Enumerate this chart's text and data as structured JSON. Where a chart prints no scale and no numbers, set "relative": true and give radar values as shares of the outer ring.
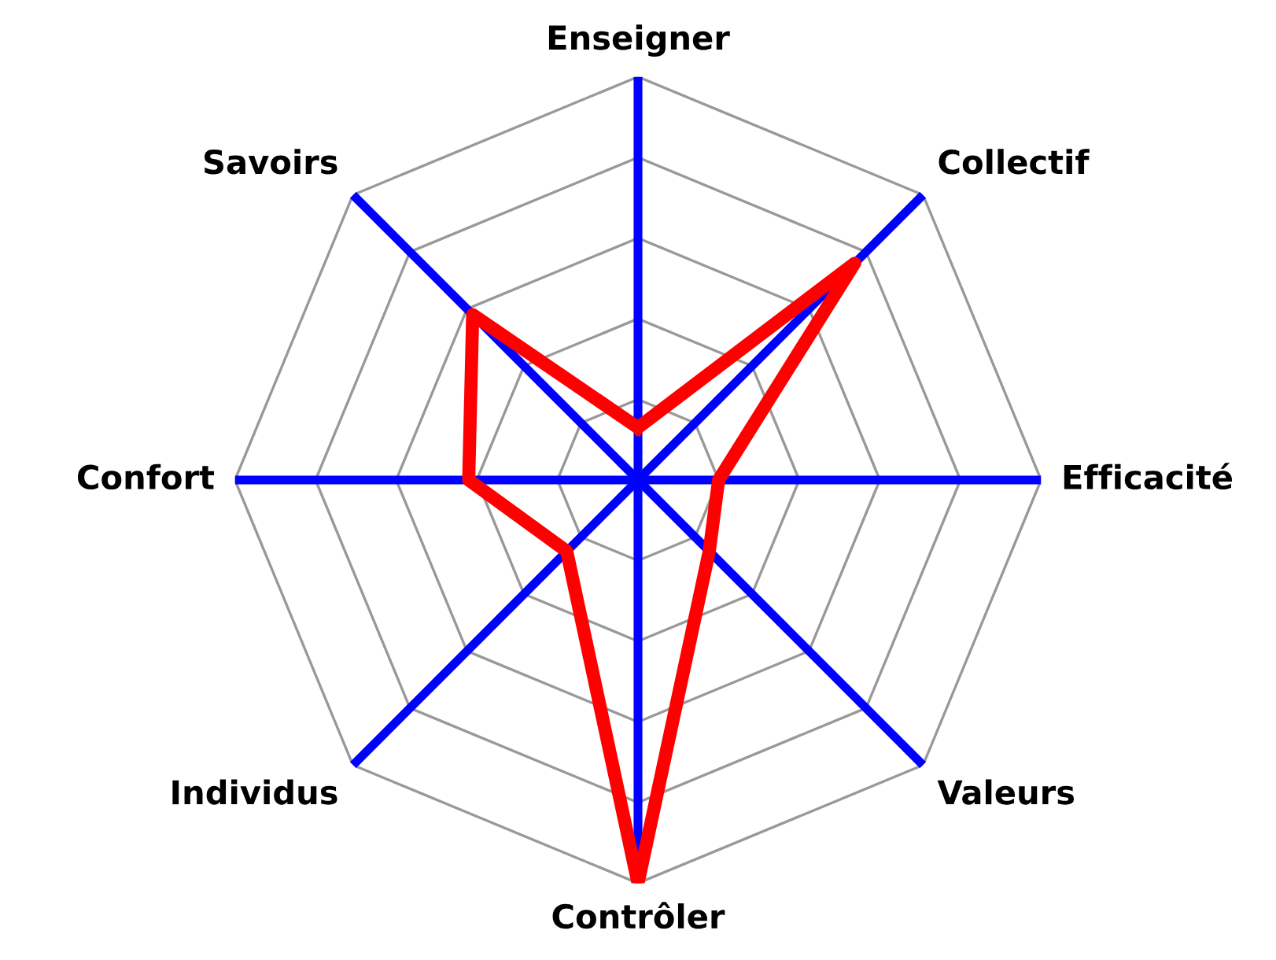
{
  "chart_data": {
    "type": "radar",
    "categories": [
      "Enseigner",
      "Collectif",
      "Efficacité",
      "Valeurs",
      "Contrôler",
      "Individus",
      "Confort",
      "Savoirs"
    ],
    "relative": true,
    "grid": true,
    "series": [
      {
        "color": "#ff0000",
        "values": [
          0.13,
          0.76,
          0.2,
          0.25,
          1.0,
          0.25,
          0.42,
          0.58
        ]
      }
    ]
  }
}
